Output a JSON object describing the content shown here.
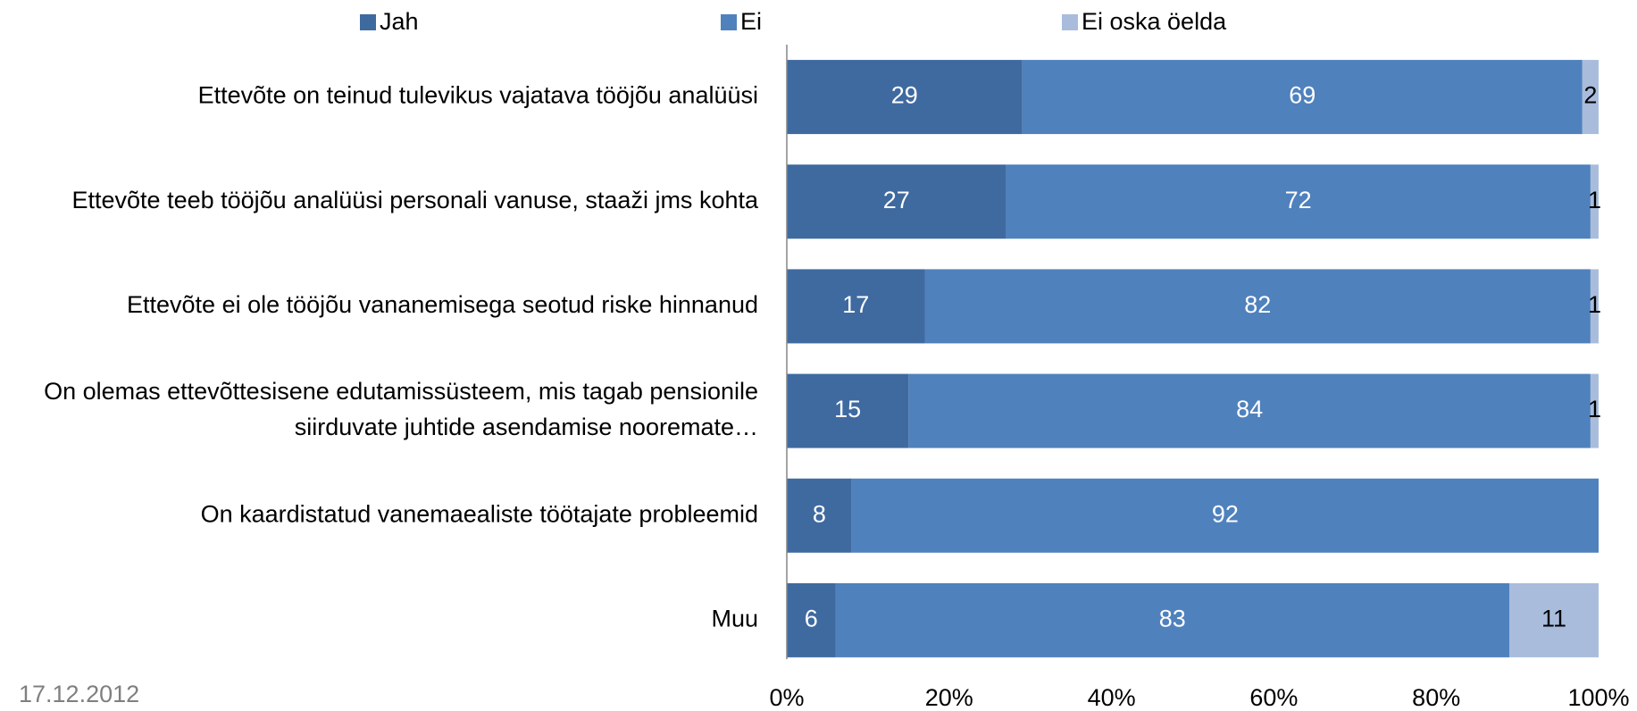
{
  "chart_data": {
    "type": "stacked_barh",
    "categories": [
      "Ettevõte on teinud tulevikus vajatava tööjõu analüüsi",
      "Ettevõte teeb tööjõu analüüsi personali vanuse, staaži jms kohta",
      "Ettevõte ei ole tööjõu vananemisega seotud riske hinnanud",
      "On olemas ettevõttesisene edutamissüsteem, mis tagab pensionile siirduvate juhtide asendamise nooremate…",
      "On kaardistatud vanemaealiste töötajate probleemid",
      "Muu"
    ],
    "series": [
      {
        "name": "Jah",
        "color": "#3f6aa0",
        "label_color": "#ffffff",
        "values": [
          29,
          27,
          17,
          15,
          8,
          6
        ]
      },
      {
        "name": "Ei",
        "color": "#4f81bd",
        "label_color": "#ffffff",
        "values": [
          69,
          72,
          82,
          84,
          92,
          83
        ]
      },
      {
        "name": "Ei oska öelda",
        "color": "#a9bcdc",
        "label_color": "#000000",
        "values": [
          2,
          1,
          1,
          1,
          0,
          11
        ]
      }
    ],
    "xlim": [
      0,
      100
    ],
    "xticks": [
      {
        "value": 0,
        "label": "0%"
      },
      {
        "value": 20,
        "label": "20%"
      },
      {
        "value": 40,
        "label": "40%"
      },
      {
        "value": 60,
        "label": "60%"
      },
      {
        "value": 80,
        "label": "80%"
      },
      {
        "value": 100,
        "label": "100%"
      }
    ],
    "legend": "top",
    "grid": false
  },
  "footer": {
    "date": "17.12.2012"
  }
}
